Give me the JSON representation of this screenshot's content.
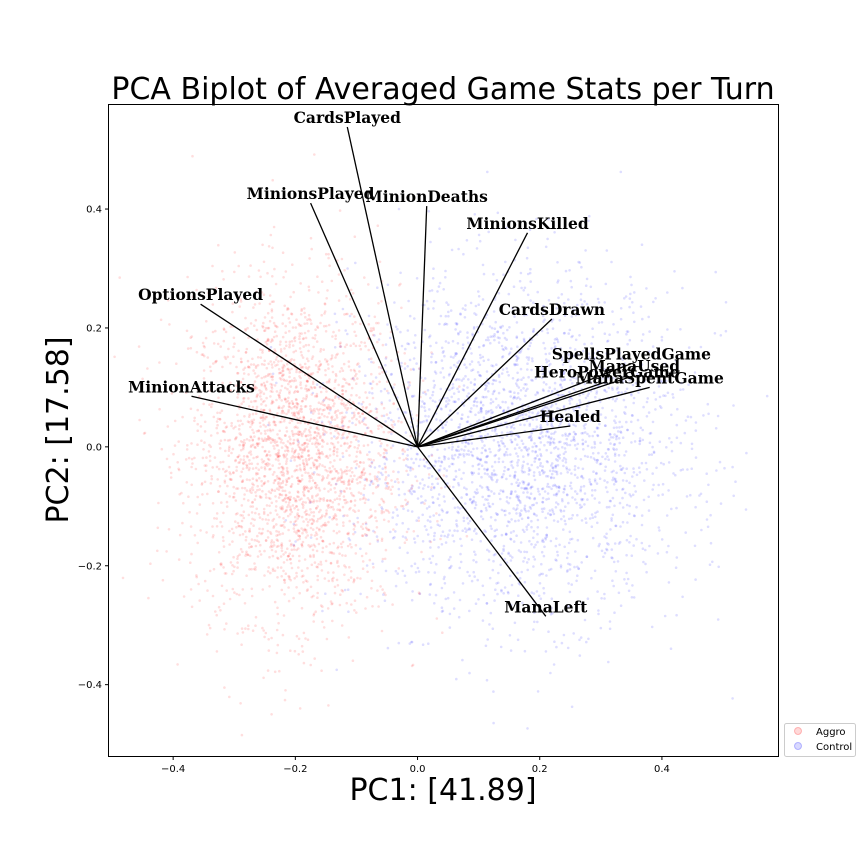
{
  "chart_data": {
    "type": "scatter",
    "title": "PCA Biplot of Averaged Game Stats per Turn",
    "xlabel": "PC1: [41.89]",
    "ylabel": "PC2: [17.58]",
    "xlim": [
      -0.505,
      0.59
    ],
    "ylim": [
      -0.52,
      0.575
    ],
    "x_ticks": [
      -0.4,
      -0.2,
      0.0,
      0.2,
      0.4
    ],
    "y_ticks": [
      -0.4,
      -0.2,
      0.0,
      0.2,
      0.4
    ],
    "x_tick_labels": [
      "−0.4",
      "−0.2",
      "0.0",
      "0.2",
      "0.4"
    ],
    "y_tick_labels": [
      "−0.4",
      "−0.2",
      "0.0",
      "0.2",
      "0.4"
    ],
    "grid": false,
    "legend_position": "outside-bottom-right",
    "series": [
      {
        "name": "Aggro",
        "color": "#ff0000",
        "center": [
          -0.2,
          -0.01
        ],
        "spread": [
          0.085,
          0.14
        ],
        "count": 2600
      },
      {
        "name": "Control",
        "color": "#0000ff",
        "center": [
          0.17,
          0.0
        ],
        "spread": [
          0.135,
          0.14
        ],
        "count": 2600
      }
    ],
    "loadings": [
      {
        "name": "CardsPlayed",
        "x": -0.115,
        "y": 0.538
      },
      {
        "name": "MinionsPlayed",
        "x": -0.175,
        "y": 0.41
      },
      {
        "name": "MinionDeaths",
        "x": 0.015,
        "y": 0.405
      },
      {
        "name": "MinionsKilled",
        "x": 0.18,
        "y": 0.36
      },
      {
        "name": "OptionsPlayed",
        "x": -0.355,
        "y": 0.24
      },
      {
        "name": "CardsDrawn",
        "x": 0.22,
        "y": 0.215
      },
      {
        "name": "SpellsPlayedGame",
        "x": 0.35,
        "y": 0.14
      },
      {
        "name": "ManaUsed",
        "x": 0.355,
        "y": 0.12
      },
      {
        "name": "HeroPowerGame",
        "x": 0.31,
        "y": 0.11
      },
      {
        "name": "ManaSpentGame",
        "x": 0.38,
        "y": 0.1
      },
      {
        "name": "MinionAttacks",
        "x": -0.37,
        "y": 0.085
      },
      {
        "name": "Healed",
        "x": 0.25,
        "y": 0.035
      },
      {
        "name": "ManaLeft",
        "x": 0.21,
        "y": -0.285
      }
    ]
  },
  "legend": {
    "items": [
      {
        "label": "Aggro",
        "color": "#ff0000"
      },
      {
        "label": "Control",
        "color": "#0000ff"
      }
    ]
  }
}
